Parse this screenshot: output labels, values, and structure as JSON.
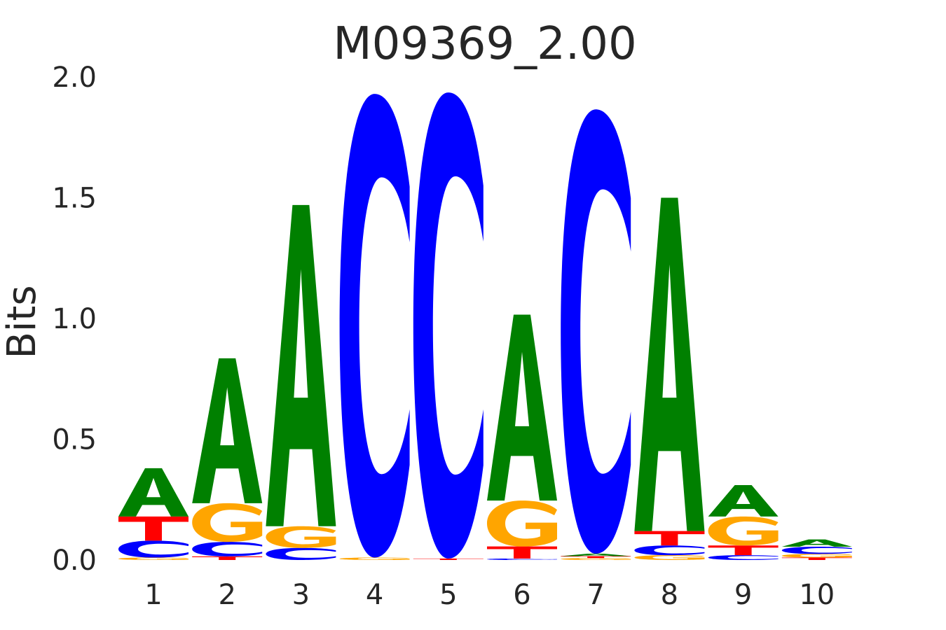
{
  "chart_data": {
    "type": "bar",
    "subtype": "sequence-logo",
    "title": "M09369_2.00",
    "xlabel": "",
    "ylabel": "Bits",
    "ylim": [
      0,
      2.0
    ],
    "yticks": [
      "0.0",
      "0.5",
      "1.0",
      "1.5",
      "2.0"
    ],
    "categories": [
      "1",
      "2",
      "3",
      "4",
      "5",
      "6",
      "7",
      "8",
      "9",
      "10"
    ],
    "letter_colors": {
      "A": "#008000",
      "C": "#0000ff",
      "G": "#ffa500",
      "T": "#ff0000"
    },
    "stacks": [
      [
        {
          "letter": "G",
          "value": 0.01
        },
        {
          "letter": "C",
          "value": 0.07
        },
        {
          "letter": "T",
          "value": 0.1
        },
        {
          "letter": "A",
          "value": 0.2
        }
      ],
      [
        {
          "letter": "T",
          "value": 0.015
        },
        {
          "letter": "C",
          "value": 0.06
        },
        {
          "letter": "G",
          "value": 0.16
        },
        {
          "letter": "A",
          "value": 0.6
        }
      ],
      [
        {
          "letter": "C",
          "value": 0.05
        },
        {
          "letter": "G",
          "value": 0.09
        },
        {
          "letter": "A",
          "value": 1.33
        }
      ],
      [
        {
          "letter": "G",
          "value": 0.01
        },
        {
          "letter": "C",
          "value": 1.92
        }
      ],
      [
        {
          "letter": "T",
          "value": 0.006
        },
        {
          "letter": "C",
          "value": 1.93
        }
      ],
      [
        {
          "letter": "C",
          "value": 0.006
        },
        {
          "letter": "T",
          "value": 0.05
        },
        {
          "letter": "G",
          "value": 0.19
        },
        {
          "letter": "A",
          "value": 0.77
        }
      ],
      [
        {
          "letter": "G",
          "value": 0.008
        },
        {
          "letter": "T",
          "value": 0.008
        },
        {
          "letter": "A",
          "value": 0.01
        },
        {
          "letter": "C",
          "value": 1.84
        }
      ],
      [
        {
          "letter": "G",
          "value": 0.02
        },
        {
          "letter": "C",
          "value": 0.04
        },
        {
          "letter": "T",
          "value": 0.06
        },
        {
          "letter": "A",
          "value": 1.38
        }
      ],
      [
        {
          "letter": "C",
          "value": 0.02
        },
        {
          "letter": "T",
          "value": 0.04
        },
        {
          "letter": "G",
          "value": 0.12
        },
        {
          "letter": "A",
          "value": 0.13
        }
      ],
      [
        {
          "letter": "T",
          "value": 0.01
        },
        {
          "letter": "G",
          "value": 0.015
        },
        {
          "letter": "C",
          "value": 0.03
        },
        {
          "letter": "A",
          "value": 0.03
        }
      ]
    ]
  }
}
